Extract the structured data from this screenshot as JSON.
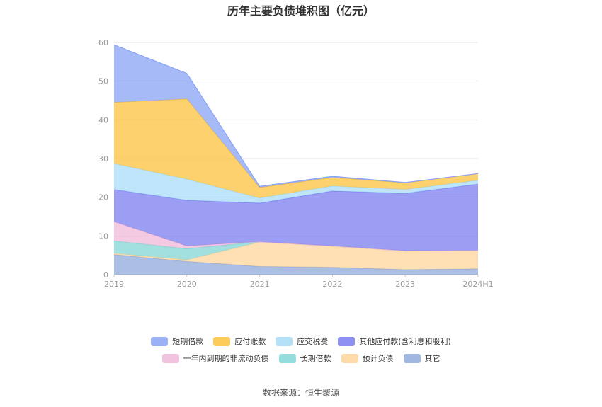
{
  "chart_data": {
    "type": "area",
    "title": "历年主要负债堆积图（亿元）",
    "categories": [
      "2019",
      "2020",
      "2021",
      "2022",
      "2023",
      "2024H1"
    ],
    "ylim": [
      0,
      60
    ],
    "yticks": [
      0,
      10,
      20,
      30,
      40,
      50,
      60
    ],
    "grid": true,
    "legend_position": "bottom",
    "stacked": true,
    "series": [
      {
        "name": "其它",
        "color": "#8faadc",
        "values": [
          5.2,
          3.4,
          2.1,
          1.9,
          1.3,
          1.5
        ]
      },
      {
        "name": "预计负债",
        "color": "#ffd59b",
        "values": [
          0.3,
          0.4,
          6.3,
          5.4,
          4.8,
          4.7
        ]
      },
      {
        "name": "长期借款",
        "color": "#83d6d6",
        "values": [
          3.2,
          2.9,
          0.1,
          0.1,
          0.1,
          0.1
        ]
      },
      {
        "name": "一年内到期的非流动负债",
        "color": "#efb8d8",
        "values": [
          5.0,
          0.7,
          0.0,
          0.0,
          0.0,
          0.0
        ]
      },
      {
        "name": "其他应付款(含利息和股利)",
        "color": "#7b7ef0",
        "values": [
          8.3,
          11.8,
          10.0,
          14.2,
          14.8,
          17.1
        ]
      },
      {
        "name": "应交税费",
        "color": "#a8dcf7",
        "values": [
          6.7,
          5.5,
          1.3,
          1.3,
          1.0,
          1.0
        ]
      },
      {
        "name": "应付账款",
        "color": "#fcc23d",
        "values": [
          15.8,
          20.7,
          2.7,
          2.2,
          1.7,
          1.7
        ]
      },
      {
        "name": "短期借款",
        "color": "#8aa3f6",
        "values": [
          14.9,
          6.6,
          0.3,
          0.3,
          0.1,
          0.0
        ]
      }
    ],
    "legend_order": [
      "短期借款",
      "应付账款",
      "应交税费",
      "其他应付款(含利息和股利)",
      "一年内到期的非流动负债",
      "长期借款",
      "预计负债",
      "其它"
    ]
  },
  "source": "数据来源：恒生聚源"
}
